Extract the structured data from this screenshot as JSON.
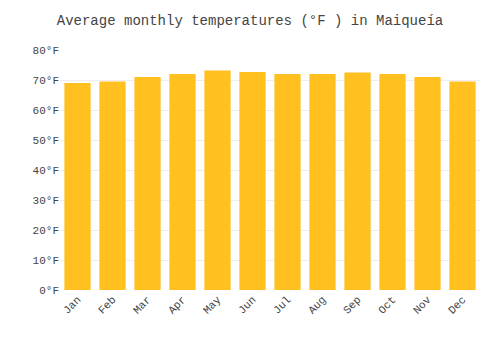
{
  "chart_data": {
    "type": "bar",
    "title": "Average monthly temperatures (°F ) in Maiqueía",
    "categories": [
      "Jan",
      "Feb",
      "Mar",
      "Apr",
      "May",
      "Jun",
      "Jul",
      "Aug",
      "Sep",
      "Oct",
      "Nov",
      "Dec"
    ],
    "values": [
      69.0,
      69.5,
      71.0,
      72.0,
      73.2,
      72.7,
      72.0,
      72.0,
      72.5,
      72.0,
      71.0,
      69.5
    ],
    "color": "#FFC020",
    "ylim": [
      0,
      80
    ],
    "yticks": [
      {
        "value": 0,
        "label": "0°F"
      },
      {
        "value": 10,
        "label": "10°F"
      },
      {
        "value": 20,
        "label": "20°F"
      },
      {
        "value": 30,
        "label": "30°F"
      },
      {
        "value": 40,
        "label": "40°F"
      },
      {
        "value": 50,
        "label": "50°F"
      },
      {
        "value": 60,
        "label": "60°F"
      },
      {
        "value": 70,
        "label": "70°F"
      },
      {
        "value": 80,
        "label": "80°F"
      }
    ],
    "grid": true
  }
}
